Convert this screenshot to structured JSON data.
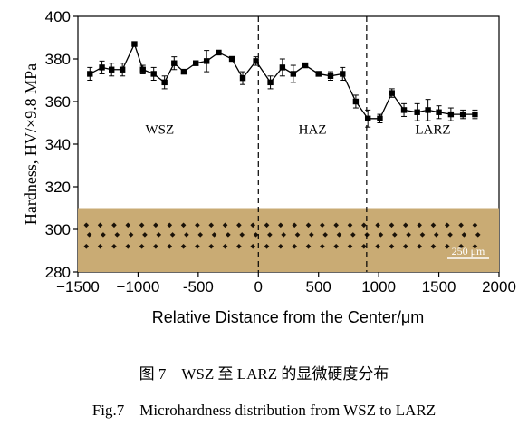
{
  "chart_data": {
    "type": "scatter",
    "xlabel": "Relative Distance from the Center/μm",
    "ylabel": "Hardness, HV/×9.8 MPa",
    "xlim": [
      -1500,
      2000
    ],
    "ylim": [
      280,
      400
    ],
    "x_ticks": [
      -1500,
      -1000,
      -500,
      0,
      500,
      1000,
      1500,
      2000
    ],
    "y_ticks": [
      280,
      300,
      320,
      340,
      360,
      380,
      400
    ],
    "x_tick_labels": [
      "−1500",
      "−1000",
      "-500",
      "0",
      "500",
      "1000",
      "1500",
      "2000"
    ],
    "y_tick_labels": [
      "280",
      "300",
      "320",
      "340",
      "360",
      "380",
      "400"
    ],
    "grid": false,
    "series": [
      {
        "marker": "square",
        "line": "solid",
        "x": [
          -1400,
          -1300,
          -1220,
          -1130,
          -1030,
          -960,
          -870,
          -780,
          -700,
          -620,
          -520,
          -430,
          -330,
          -220,
          -130,
          -20,
          100,
          200,
          290,
          390,
          500,
          600,
          700,
          810,
          910,
          1010,
          1110,
          1210,
          1320,
          1410,
          1500,
          1600,
          1700,
          1800
        ],
        "y": [
          373,
          376,
          375,
          375,
          387,
          375,
          373,
          369,
          378,
          374,
          378,
          379,
          383,
          380,
          371,
          379,
          369,
          376,
          373,
          377,
          373,
          372,
          373,
          360,
          352,
          352,
          364,
          356,
          355,
          356,
          355,
          354,
          354,
          354
        ],
        "error": [
          3,
          3,
          3,
          3,
          0,
          2,
          3,
          3,
          3,
          1,
          1,
          5,
          1,
          1,
          3,
          2,
          3,
          4,
          4,
          1,
          1,
          2,
          3,
          3,
          4,
          2,
          2,
          3,
          4,
          5,
          3,
          3,
          2,
          2
        ]
      }
    ],
    "dividers": [
      0,
      900
    ],
    "regions": [
      {
        "label": "WSZ",
        "x": -820,
        "y": 345
      },
      {
        "label": "HAZ",
        "x": 450,
        "y": 345
      },
      {
        "label": "LARZ",
        "x": 1450,
        "y": 345
      }
    ],
    "inset": {
      "scale_label": "250 μm"
    }
  },
  "captions": {
    "chinese": "图 7　WSZ 至 LARZ 的显微硬度分布",
    "english": "Fig.7　Microhardness distribution from WSZ to LARZ"
  },
  "colors": {
    "series": "#000000",
    "micrograph_bg": "#c9ab74",
    "indent": "#1a1208",
    "scale_text": "#ffffff"
  }
}
